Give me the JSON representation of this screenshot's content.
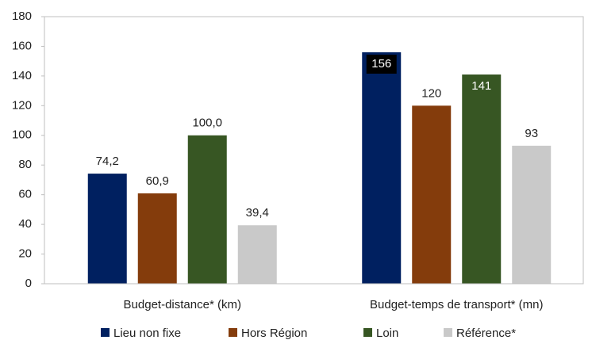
{
  "chart_data": {
    "type": "bar",
    "categories": [
      "Budget-distance* (km)",
      "Budget-temps de transport* (mn)"
    ],
    "series": [
      {
        "name": "Lieu non fixe",
        "color": "#002060",
        "values": [
          74.2,
          156
        ],
        "value_labels": [
          "74,2",
          "156"
        ]
      },
      {
        "name": "Hors Région",
        "color": "#843c0c",
        "values": [
          60.9,
          120
        ],
        "value_labels": [
          "60,9",
          "120"
        ]
      },
      {
        "name": "Loin",
        "color": "#375623",
        "values": [
          100.0,
          141
        ],
        "value_labels": [
          "100,0",
          "141"
        ]
      },
      {
        "name": "Référence*",
        "color": "#c9c9c9",
        "values": [
          39.4,
          93
        ],
        "value_labels": [
          "39,4",
          "93"
        ]
      }
    ],
    "ylim": [
      0,
      180
    ],
    "yticks": [
      0,
      20,
      40,
      60,
      80,
      100,
      120,
      140,
      160,
      180
    ],
    "grid": false,
    "legend": "bottom"
  }
}
